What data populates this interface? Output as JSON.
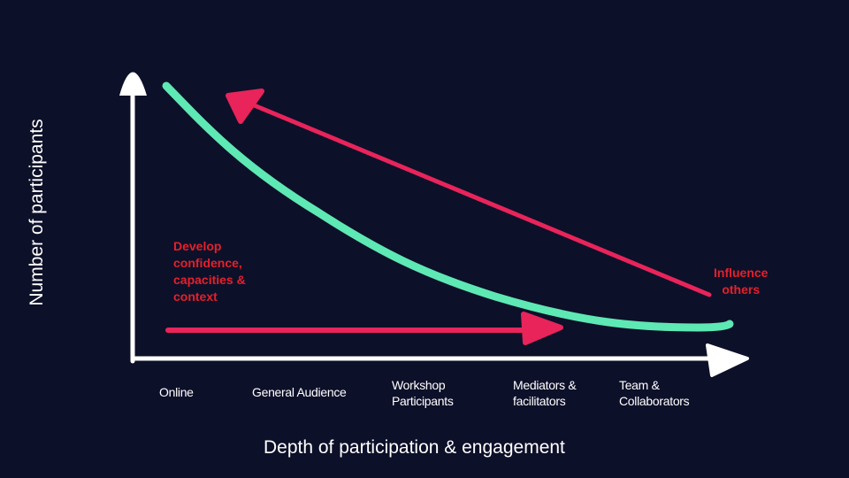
{
  "axes": {
    "y_label": "Number of participants",
    "x_label": "Depth of participation & engagement"
  },
  "categories": [
    "Online",
    "General Audience",
    "Workshop\nParticipants",
    "Mediators &\nfacilitators",
    "Team &\nCollaborators"
  ],
  "annotations": {
    "develop": "Develop\nconfidence,\ncapacities &\ncontext",
    "influence": "Influence\nothers"
  },
  "colors": {
    "background": "#0d1029",
    "curve": "#5ee8b4",
    "arrows": "#e8245a",
    "annotation_text": "#e4202c",
    "axes": "#ffffff"
  }
}
